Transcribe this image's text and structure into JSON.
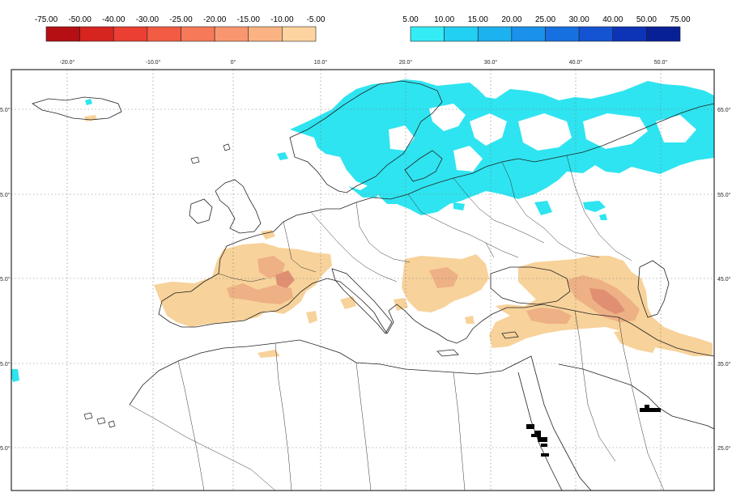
{
  "legend": {
    "negative": {
      "labels": [
        "-75.00",
        "-50.00",
        "-40.00",
        "-30.00",
        "-25.00",
        "-20.00",
        "-15.00",
        "-10.00",
        "-5.00"
      ],
      "colors": [
        "#b50f14",
        "#d6241f",
        "#ea3f32",
        "#f25c45",
        "#f6795a",
        "#f9966f",
        "#fbb384",
        "#fdd49f"
      ]
    },
    "positive": {
      "labels": [
        "5.00",
        "10.00",
        "15.00",
        "20.00",
        "25.00",
        "30.00",
        "40.00",
        "50.00",
        "75.00"
      ],
      "colors": [
        "#33ecf6",
        "#22d0f3",
        "#1cb1ef",
        "#1a91ea",
        "#1770e0",
        "#1453d2",
        "#0d33b7",
        "#082096"
      ]
    }
  },
  "map": {
    "lon_labels": [
      "-20.0°",
      "-10.0°",
      "0°",
      "10.0°",
      "20.0°",
      "30.0°",
      "40.0°",
      "50.0°"
    ],
    "lat_labels_right": [
      "65.0°",
      "55.0°",
      "45.0°",
      "35.0°",
      "25.0°"
    ],
    "lat_labels_left": [
      "5.0°",
      "5.0°",
      "5.0°",
      "5.0°",
      "5.0°"
    ],
    "colors": {
      "cyan_anomaly": "#2ee4f0",
      "light_tan": "#f7d29a",
      "mid_tan": "#eeb085",
      "dark_tan": "#e08f73",
      "black_marks": "#000000",
      "coast": "#222222",
      "grid": "#777777"
    }
  }
}
